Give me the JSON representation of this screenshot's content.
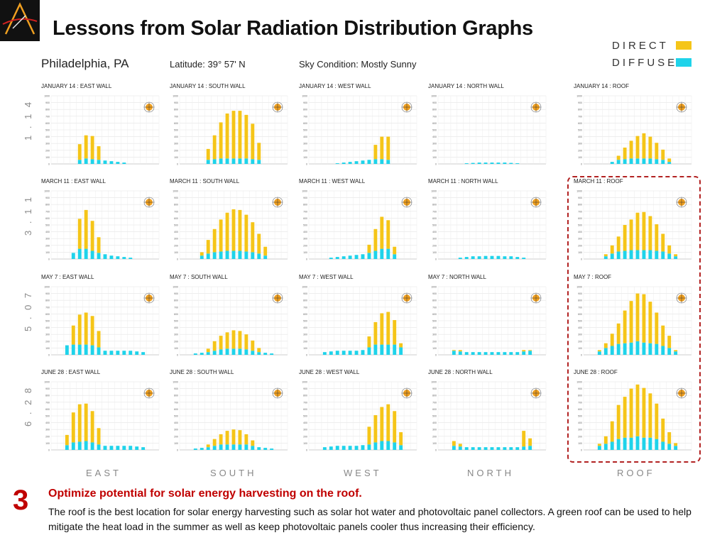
{
  "slide": {
    "title": "Lessons from Solar Radiation Distribution Graphs",
    "number": "3",
    "heading": "Optimize potential for solar energy harvesting on the roof.",
    "body": "The roof is the best location for solar energy harvesting such as solar hot water and photovoltaic panel collectors.  A green roof can be used to help mitigate the heat load in the summer as well as keep photovoltaic panels cooler thus increasing their efficiency."
  },
  "legend": {
    "direct_label": "DIRECT",
    "diffuse_label": "DIFFUSE",
    "direct_color": "#f5c518",
    "diffuse_color": "#1fd3ea"
  },
  "header": {
    "city": "Philadelphia, PA",
    "latitude": "Latitude: 39° 57' N",
    "sky": "Sky Condition: Mostly Sunny"
  },
  "row_labels": [
    "1 . 1 4",
    "3 . 1 1",
    "5 . 0 7",
    "6 . 2 8"
  ],
  "column_labels": [
    "EAST",
    "SOUTH",
    "WEST",
    "NORTH",
    "ROOF"
  ],
  "chart_data": {
    "type": "bar",
    "stacked": true,
    "ylim": [
      0,
      1000
    ],
    "yticks": [
      0,
      100,
      200,
      300,
      400,
      500,
      600,
      700,
      800,
      900,
      1000
    ],
    "series_names": [
      "DIRECT",
      "DIFFUSE"
    ],
    "panels": [
      {
        "title": "JANUARY 14 : EAST WALL",
        "diffuse": [
          0,
          0,
          0,
          0,
          60,
          80,
          70,
          60,
          50,
          40,
          30,
          20,
          0,
          0,
          0,
          0,
          0
        ],
        "direct": [
          0,
          0,
          0,
          0,
          230,
          340,
          340,
          200,
          0,
          0,
          0,
          0,
          0,
          0,
          0,
          0,
          0
        ]
      },
      {
        "title": "JANUARY 14 : SOUTH WALL",
        "diffuse": [
          0,
          0,
          0,
          0,
          60,
          70,
          80,
          80,
          80,
          80,
          80,
          70,
          60,
          0,
          0,
          0,
          0
        ],
        "direct": [
          0,
          0,
          0,
          0,
          160,
          350,
          530,
          660,
          700,
          700,
          640,
          520,
          250,
          0,
          0,
          0,
          0
        ]
      },
      {
        "title": "JANUARY 14 : WEST WALL",
        "diffuse": [
          0,
          0,
          0,
          0,
          10,
          20,
          30,
          40,
          50,
          60,
          70,
          70,
          60,
          0,
          0,
          0,
          0
        ],
        "direct": [
          0,
          0,
          0,
          0,
          0,
          0,
          0,
          0,
          0,
          0,
          210,
          330,
          340,
          0,
          0,
          0,
          0
        ]
      },
      {
        "title": "JANUARY 14 : NORTH WALL",
        "diffuse": [
          0,
          0,
          0,
          0,
          10,
          15,
          20,
          20,
          20,
          20,
          20,
          15,
          10,
          0,
          0,
          0,
          0
        ],
        "direct": [
          0,
          0,
          0,
          0,
          0,
          0,
          0,
          0,
          0,
          0,
          0,
          0,
          0,
          0,
          0,
          0,
          0
        ]
      },
      {
        "title": "JANUARY 14 : ROOF",
        "diffuse": [
          0,
          0,
          0,
          0,
          30,
          60,
          70,
          80,
          80,
          80,
          80,
          70,
          60,
          30,
          0,
          0,
          0
        ],
        "direct": [
          0,
          0,
          0,
          0,
          0,
          60,
          170,
          260,
          330,
          370,
          320,
          240,
          150,
          50,
          0,
          0,
          0
        ]
      },
      {
        "title": "MARCH 11 : EAST WALL",
        "diffuse": [
          0,
          0,
          0,
          90,
          150,
          150,
          120,
          90,
          70,
          50,
          40,
          30,
          20,
          0,
          0,
          0,
          0
        ],
        "direct": [
          0,
          0,
          0,
          0,
          440,
          570,
          440,
          230,
          0,
          0,
          0,
          0,
          0,
          0,
          0,
          0,
          0
        ]
      },
      {
        "title": "MARCH 11 : SOUTH WALL",
        "diffuse": [
          0,
          0,
          0,
          50,
          80,
          100,
          110,
          120,
          120,
          120,
          110,
          100,
          80,
          50,
          0,
          0,
          0
        ],
        "direct": [
          0,
          0,
          0,
          50,
          200,
          340,
          470,
          560,
          610,
          600,
          540,
          440,
          290,
          130,
          0,
          0,
          0
        ]
      },
      {
        "title": "MARCH 11 : WEST WALL",
        "diffuse": [
          0,
          0,
          0,
          20,
          30,
          40,
          50,
          60,
          70,
          90,
          120,
          150,
          150,
          70,
          0,
          0,
          0
        ],
        "direct": [
          0,
          0,
          0,
          0,
          0,
          0,
          0,
          0,
          0,
          120,
          320,
          470,
          420,
          110,
          0,
          0,
          0
        ]
      },
      {
        "title": "MARCH 11 : NORTH WALL",
        "diffuse": [
          0,
          0,
          0,
          20,
          30,
          40,
          40,
          45,
          45,
          45,
          40,
          40,
          30,
          20,
          0,
          0,
          0
        ],
        "direct": [
          0,
          0,
          0,
          0,
          0,
          0,
          0,
          0,
          0,
          0,
          0,
          0,
          0,
          0,
          0,
          0,
          0
        ]
      },
      {
        "title": "MARCH 11 : ROOF",
        "diffuse": [
          0,
          0,
          0,
          40,
          80,
          110,
          120,
          130,
          130,
          130,
          130,
          120,
          110,
          80,
          40,
          0,
          0
        ],
        "direct": [
          0,
          0,
          0,
          30,
          120,
          220,
          380,
          450,
          550,
          560,
          500,
          390,
          260,
          120,
          30,
          0,
          0
        ]
      },
      {
        "title": "MAY 7 : EAST WALL",
        "diffuse": [
          0,
          0,
          140,
          150,
          150,
          150,
          140,
          110,
          60,
          60,
          60,
          60,
          60,
          50,
          40,
          0,
          0
        ],
        "direct": [
          0,
          0,
          0,
          280,
          440,
          470,
          430,
          240,
          0,
          0,
          0,
          0,
          0,
          0,
          0,
          0,
          0
        ]
      },
      {
        "title": "MAY 7 : SOUTH WALL",
        "diffuse": [
          0,
          0,
          20,
          30,
          40,
          60,
          80,
          90,
          90,
          90,
          80,
          60,
          40,
          30,
          20,
          0,
          0
        ],
        "direct": [
          0,
          0,
          0,
          0,
          50,
          140,
          200,
          240,
          270,
          260,
          220,
          150,
          60,
          0,
          0,
          0,
          0
        ]
      },
      {
        "title": "MAY 7 : WEST WALL",
        "diffuse": [
          0,
          0,
          40,
          50,
          60,
          60,
          60,
          60,
          70,
          110,
          150,
          150,
          150,
          150,
          110,
          0,
          0
        ],
        "direct": [
          0,
          0,
          0,
          0,
          0,
          0,
          0,
          0,
          0,
          160,
          330,
          460,
          480,
          360,
          60,
          0,
          0
        ]
      },
      {
        "title": "MAY 7 : NORTH WALL",
        "diffuse": [
          0,
          0,
          60,
          50,
          40,
          40,
          40,
          40,
          40,
          40,
          40,
          40,
          40,
          50,
          60,
          0,
          0
        ],
        "direct": [
          0,
          0,
          10,
          20,
          0,
          0,
          0,
          0,
          0,
          0,
          0,
          0,
          0,
          20,
          10,
          0,
          0
        ]
      },
      {
        "title": "MAY 7 : ROOF",
        "diffuse": [
          0,
          0,
          50,
          100,
          130,
          160,
          170,
          180,
          200,
          180,
          170,
          160,
          130,
          100,
          50,
          0,
          0
        ],
        "direct": [
          0,
          0,
          20,
          70,
          180,
          300,
          480,
          610,
          700,
          710,
          610,
          460,
          300,
          180,
          20,
          0,
          0
        ]
      },
      {
        "title": "JUNE 28 : EAST WALL",
        "diffuse": [
          0,
          0,
          70,
          110,
          120,
          130,
          110,
          80,
          60,
          60,
          60,
          60,
          60,
          50,
          40,
          0,
          0
        ],
        "direct": [
          0,
          0,
          150,
          440,
          550,
          550,
          460,
          240,
          0,
          0,
          0,
          0,
          0,
          0,
          0,
          0,
          0
        ]
      },
      {
        "title": "JUNE 28 : SOUTH WALL",
        "diffuse": [
          0,
          0,
          20,
          30,
          40,
          60,
          80,
          80,
          80,
          80,
          80,
          60,
          40,
          30,
          20,
          0,
          0
        ],
        "direct": [
          0,
          0,
          0,
          0,
          40,
          100,
          150,
          200,
          220,
          210,
          150,
          80,
          0,
          0,
          0,
          0,
          0
        ]
      },
      {
        "title": "JUNE 28 : WEST WALL",
        "diffuse": [
          0,
          0,
          40,
          50,
          60,
          60,
          60,
          60,
          70,
          80,
          110,
          130,
          130,
          110,
          70,
          0,
          0
        ],
        "direct": [
          0,
          0,
          0,
          0,
          0,
          0,
          0,
          0,
          0,
          260,
          400,
          500,
          540,
          460,
          190,
          0,
          0
        ]
      },
      {
        "title": "JUNE 28 : NORTH WALL",
        "diffuse": [
          0,
          0,
          60,
          50,
          40,
          40,
          40,
          40,
          40,
          40,
          40,
          40,
          40,
          50,
          60,
          0,
          0
        ],
        "direct": [
          0,
          0,
          70,
          40,
          0,
          0,
          0,
          0,
          0,
          0,
          0,
          0,
          0,
          230,
          110,
          0,
          0
        ]
      },
      {
        "title": "JUNE 28 : ROOF",
        "diffuse": [
          0,
          0,
          60,
          90,
          120,
          160,
          180,
          180,
          200,
          180,
          180,
          160,
          120,
          90,
          60,
          0,
          0
        ],
        "direct": [
          0,
          0,
          30,
          110,
          300,
          500,
          600,
          720,
          760,
          730,
          650,
          520,
          340,
          170,
          40,
          0,
          0
        ]
      }
    ]
  }
}
